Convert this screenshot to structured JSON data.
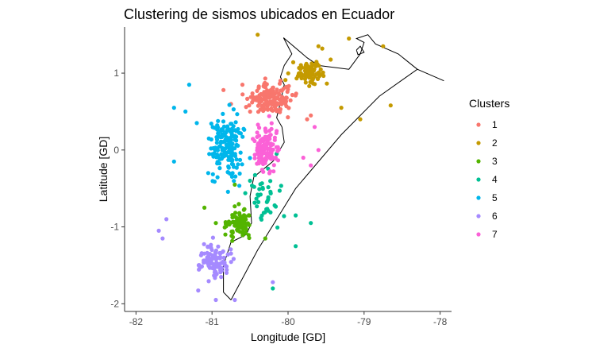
{
  "chart_data": {
    "type": "scatter",
    "title": "Clustering de sismos ubicados en Ecuador",
    "xlabel": "Longitude [GD]",
    "ylabel": "Latitude [GD]",
    "xlim": [
      -82.15,
      -77.85
    ],
    "ylim": [
      -2.1,
      1.6
    ],
    "x_ticks": [
      -82,
      -81,
      -80,
      -79,
      -78
    ],
    "y_ticks": [
      -2,
      -1,
      0,
      1
    ],
    "grid": false,
    "legend": {
      "title": "Clusters",
      "position": "right",
      "entries": [
        "1",
        "2",
        "3",
        "4",
        "5",
        "6",
        "7"
      ]
    },
    "colors": [
      "#F8766D",
      "#C49A00",
      "#53B400",
      "#00C094",
      "#00B6EB",
      "#A58AFF",
      "#FB61D7"
    ],
    "series": [
      {
        "name": "1",
        "center": [
          -80.2,
          0.65
        ],
        "spread": [
          0.3,
          0.18
        ],
        "count": 150,
        "points": [
          [
            -80.85,
            0.78
          ],
          [
            -80.6,
            0.85
          ],
          [
            -80.3,
            0.93
          ],
          [
            -80.1,
            0.9
          ],
          [
            -79.75,
            0.4
          ],
          [
            -79.7,
            0.45
          ],
          [
            -80.75,
            0.6
          ]
        ]
      },
      {
        "name": "2",
        "center": [
          -79.7,
          1.0
        ],
        "spread": [
          0.22,
          0.14
        ],
        "count": 90,
        "points": [
          [
            -80.4,
            1.5
          ],
          [
            -79.2,
            1.45
          ],
          [
            -78.75,
            1.35
          ],
          [
            -78.65,
            0.58
          ],
          [
            -79.3,
            0.55
          ],
          [
            -79.05,
            0.4
          ],
          [
            -79.6,
            1.35
          ],
          [
            -79.55,
            1.32
          ]
        ]
      },
      {
        "name": "3",
        "center": [
          -80.65,
          -0.95
        ],
        "spread": [
          0.16,
          0.2
        ],
        "count": 90,
        "points": [
          [
            -81.1,
            -0.75
          ],
          [
            -80.3,
            -1.15
          ],
          [
            -80.7,
            -0.45
          ],
          [
            -80.95,
            -0.95
          ]
        ]
      },
      {
        "name": "4",
        "center": [
          -80.3,
          -0.65
        ],
        "spread": [
          0.25,
          0.3
        ],
        "count": 40,
        "points": [
          [
            -79.7,
            -0.95
          ],
          [
            -79.9,
            -0.85
          ],
          [
            -80.2,
            -1.8
          ],
          [
            -79.9,
            -1.25
          ],
          [
            -80.5,
            -0.4
          ],
          [
            -80.15,
            -0.05
          ]
        ]
      },
      {
        "name": "5",
        "center": [
          -80.8,
          0.05
        ],
        "spread": [
          0.2,
          0.38
        ],
        "count": 180,
        "points": [
          [
            -81.3,
            0.85
          ],
          [
            -81.35,
            0.5
          ],
          [
            -81.5,
            0.55
          ],
          [
            -81.5,
            -0.15
          ],
          [
            -81.05,
            -0.3
          ],
          [
            -81.2,
            0.35
          ]
        ]
      },
      {
        "name": "6",
        "center": [
          -80.95,
          -1.45
        ],
        "spread": [
          0.22,
          0.22
        ],
        "count": 95,
        "points": [
          [
            -81.7,
            -1.05
          ],
          [
            -81.65,
            -1.15
          ],
          [
            -81.6,
            -0.9
          ],
          [
            -80.7,
            -1.95
          ],
          [
            -80.95,
            -1.95
          ],
          [
            -80.2,
            -1.72
          ]
        ]
      },
      {
        "name": "7",
        "center": [
          -80.3,
          0.0
        ],
        "spread": [
          0.16,
          0.3
        ],
        "count": 120,
        "points": [
          [
            -79.6,
            0.0
          ],
          [
            -79.7,
            -0.2
          ],
          [
            -79.8,
            -0.1
          ],
          [
            -79.65,
            0.3
          ]
        ]
      }
    ],
    "outline": {
      "west_coast": [
        [
          -80.06,
          1.46
        ],
        [
          -79.95,
          1.25
        ],
        [
          -80.05,
          1.1
        ],
        [
          -80.1,
          0.95
        ],
        [
          -80.05,
          0.85
        ],
        [
          -80.1,
          0.62
        ],
        [
          -80.15,
          0.42
        ],
        [
          -80.08,
          0.3
        ],
        [
          -80.05,
          0.1
        ],
        [
          -80.2,
          -0.15
        ],
        [
          -80.45,
          -0.35
        ],
        [
          -80.5,
          -0.6
        ],
        [
          -80.48,
          -0.95
        ],
        [
          -80.55,
          -1.1
        ],
        [
          -80.75,
          -1.2
        ],
        [
          -80.85,
          -1.5
        ],
        [
          -80.85,
          -1.85
        ],
        [
          -80.75,
          -1.95
        ]
      ],
      "east_border": [
        [
          -80.75,
          -1.95
        ],
        [
          -80.4,
          -1.3
        ],
        [
          -79.9,
          -0.5
        ],
        [
          -79.3,
          0.2
        ],
        [
          -78.8,
          0.7
        ],
        [
          -78.3,
          1.05
        ],
        [
          -77.95,
          0.9
        ]
      ],
      "north_border": [
        [
          -80.06,
          1.46
        ],
        [
          -79.75,
          1.2
        ],
        [
          -79.6,
          1.1
        ],
        [
          -79.2,
          1.05
        ],
        [
          -79.05,
          1.25
        ],
        [
          -79.0,
          1.4
        ],
        [
          -79.1,
          1.45
        ],
        [
          -78.95,
          1.5
        ],
        [
          -78.85,
          1.38
        ],
        [
          -78.55,
          1.25
        ],
        [
          -78.3,
          1.05
        ]
      ],
      "islet": [
        [
          -79.1,
          1.3
        ],
        [
          -79.05,
          1.35
        ],
        [
          -79.0,
          1.27
        ],
        [
          -79.08,
          1.24
        ],
        [
          -79.1,
          1.3
        ]
      ]
    }
  }
}
